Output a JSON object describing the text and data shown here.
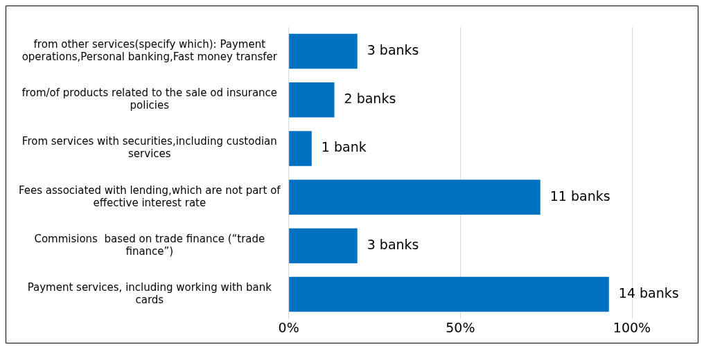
{
  "chart_data": {
    "type": "bar",
    "orientation": "horizontal",
    "categories": [
      "from other services(specify which): Payment operations,Personal banking,Fast money transfer",
      "from/of products related to the sale od insurance policies",
      "From services with securities,including custodian services",
      "Fees associated with lending,which are not part of effective interest rate",
      "Commisions  based on trade finance (“trade finance”)",
      "Payment services, including working with bank cards"
    ],
    "values": [
      20,
      13.3,
      6.7,
      73.3,
      20,
      93.3
    ],
    "annotations": [
      {
        "text": "3 banks",
        "x": 20,
        "y": "from other services(specify which): Payment operations,Personal banking,Fast money transfer"
      },
      {
        "text": "2 banks",
        "x": 13.3,
        "y": "from/of products related to the sale od insurance policies"
      },
      {
        "text": "1 bank",
        "x": 6.7,
        "y": "From services with securities,including custodian services"
      },
      {
        "text": "11 banks",
        "x": 73.3,
        "y": "Fees associated with lending,which are not part of effective interest rate"
      },
      {
        "text": "3 banks",
        "x": 20,
        "y": "Commisions  based on trade finance (“trade finance”)"
      },
      {
        "text": "14 banks",
        "x": 93.3,
        "y": "Payment services, including working with bank cards"
      }
    ],
    "color": "#0070c0",
    "xlim": [
      0,
      100
    ],
    "xticks": [
      {
        "value": 0,
        "label": "0%"
      },
      {
        "value": 50,
        "label": "50%"
      },
      {
        "value": 100,
        "label": "100%"
      }
    ],
    "grid": "x",
    "legend": false
  }
}
